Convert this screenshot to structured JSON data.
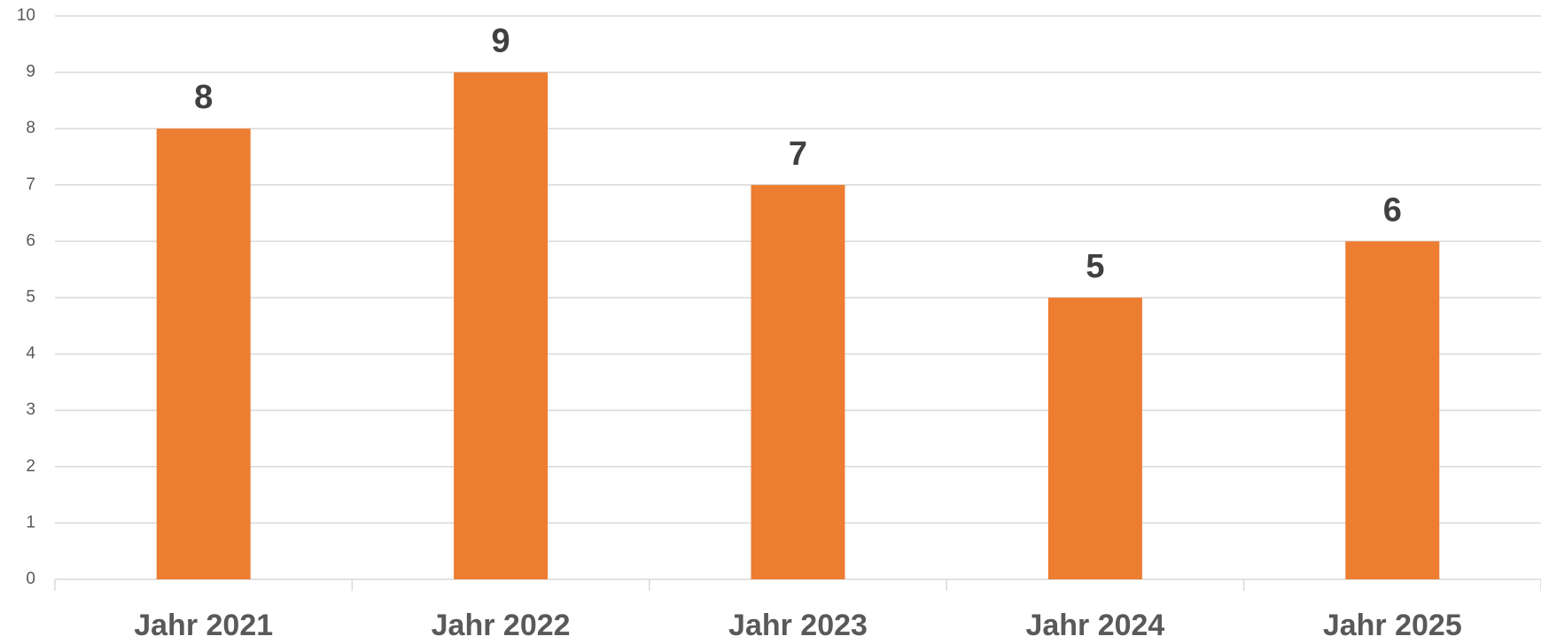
{
  "chart_data": {
    "type": "bar",
    "categories": [
      "Jahr 2021",
      "Jahr 2022",
      "Jahr 2023",
      "Jahr 2024",
      "Jahr 2025"
    ],
    "values": [
      8,
      9,
      7,
      5,
      6
    ],
    "color": "#ed7d31",
    "ylim": [
      0,
      10
    ],
    "yticks": [
      0,
      1,
      2,
      3,
      4,
      5,
      6,
      7,
      8,
      9,
      10
    ],
    "grid": true
  }
}
